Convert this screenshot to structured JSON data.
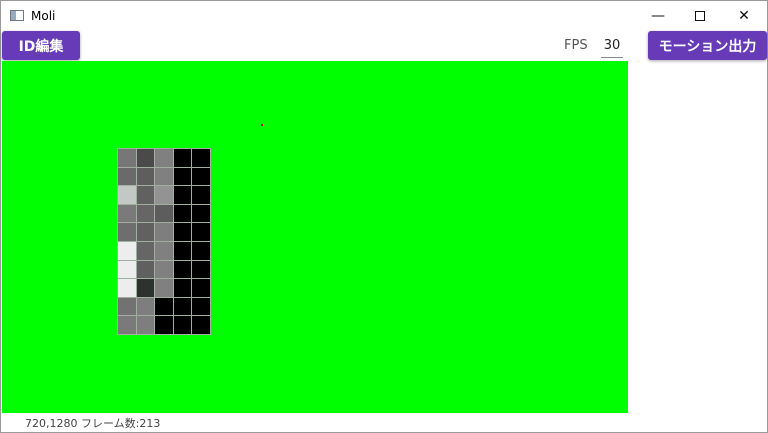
{
  "window": {
    "title": "Moli",
    "minimize_icon": "minimize-icon",
    "maximize_icon": "maximize-icon",
    "close_icon": "close-icon"
  },
  "toolbar": {
    "id_edit_label": "ID編集",
    "fps_label": "FPS",
    "fps_value": "30",
    "export_label": "モーション出力",
    "accent_color": "#673ab7"
  },
  "canvas": {
    "background": "#00ff00",
    "grid": [
      [
        "#777777",
        "#4a4a4a",
        "#808080",
        "#000000",
        "#000000"
      ],
      [
        "#6a6a6a",
        "#5e5e5e",
        "#808080",
        "#000000",
        "#000000"
      ],
      [
        "#c4c8c4",
        "#616161",
        "#939393",
        "#000000",
        "#000000"
      ],
      [
        "#7a7a7a",
        "#666666",
        "#5d5d5d",
        "#000000",
        "#000000"
      ],
      [
        "#6e6e6e",
        "#616161",
        "#7e7e7e",
        "#000000",
        "#000000"
      ],
      [
        "#eceeee",
        "#666666",
        "#808080",
        "#000000",
        "#000000"
      ],
      [
        "#eceeee",
        "#606060",
        "#808080",
        "#000000",
        "#000000"
      ],
      [
        "#eceeee",
        "#2e322e",
        "#808080",
        "#000000",
        "#000000"
      ],
      [
        "#727272",
        "#7e7e7e",
        "#000000",
        "#000000",
        "#000000"
      ],
      [
        "#7a7a7a",
        "#7e7e7e",
        "#000000",
        "#000000",
        "#000000"
      ]
    ]
  },
  "status": {
    "text": "720,1280 フレーム数:213"
  }
}
